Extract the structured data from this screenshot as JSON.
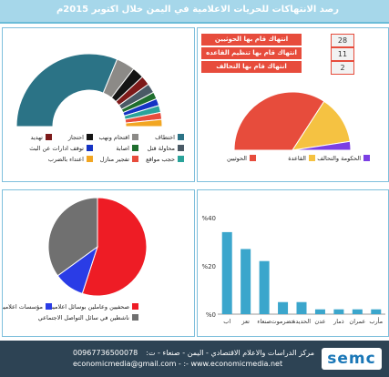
{
  "page_title": "رصد الانتهاكات للحريات الاعلامية في اليمن خلال اكتوبر 2015م",
  "colors": {
    "accent": "#a6d7ea",
    "footer": "#2d4354",
    "red": "#e74c3c"
  },
  "chart_data": [
    {
      "type": "pie",
      "variant": "half-donut",
      "title": "",
      "series": [
        {
          "name": "اختطاف",
          "value": 60,
          "color": "#2b7386"
        },
        {
          "name": "اقتحام ونهب",
          "value": 8,
          "color": "#8c8a87"
        },
        {
          "name": "احتجاز",
          "value": 5,
          "color": "#141414"
        },
        {
          "name": "تهديد",
          "value": 4,
          "color": "#7d1a1a"
        },
        {
          "name": "محاولة قتل",
          "value": 4,
          "color": "#4a5a66"
        },
        {
          "name": "اصابة",
          "value": 3,
          "color": "#1f6e2e"
        },
        {
          "name": "توقف ادارات عن البث",
          "value": 3,
          "color": "#1533c4"
        },
        {
          "name": "حجب مواقع",
          "value": 3,
          "color": "#2aa39a"
        },
        {
          "name": "تفجير منازل",
          "value": 3,
          "color": "#e74c3c"
        },
        {
          "name": "اعتداء بالضرب",
          "value": 3,
          "color": "#f2a622"
        }
      ],
      "legend_rows": [
        [
          "اختطاف",
          "اقتحام ونهب",
          "احتجاز",
          "تهديد"
        ],
        [
          "محاولة قتل",
          "اصابة",
          "توقف ادارات عن البث",
          ""
        ],
        [
          "حجب مواقع",
          "تفجير منازل",
          "اعتداء بالضرب",
          ""
        ]
      ]
    },
    {
      "type": "pie",
      "variant": "half-pie",
      "title": "",
      "series": [
        {
          "name": "الحوثيين",
          "label": "انتهاك قام بها الحوثيين",
          "value": 28,
          "color": "#e74c3c"
        },
        {
          "name": "القاعدة",
          "label": "انتهاك قام بها تنظيم القاعده",
          "value": 11,
          "color": "#f5c242"
        },
        {
          "name": "الحكومة والتحالف",
          "label": "انتهاك قام بها التحالف",
          "value": 2,
          "color": "#7b3fe4"
        }
      ]
    },
    {
      "type": "pie",
      "title": "",
      "series": [
        {
          "name": "صحفيين وعاملين بوسائل اعلامية",
          "value": 55,
          "color": "#ee1c25"
        },
        {
          "name": "مؤسسات اعلامية",
          "value": 10,
          "color": "#2a3ce6"
        },
        {
          "name": "ناشطين في سائل التواصل الاجتماعي",
          "value": 35,
          "color": "#707070"
        }
      ]
    },
    {
      "type": "bar",
      "title": "",
      "y_unit": "%",
      "ylim": [
        0,
        40
      ],
      "yticks": [
        "%0",
        "%20",
        "%40"
      ],
      "categories": [
        "اب",
        "تعز",
        "صنعاء",
        "حضرموت",
        "الحديدة",
        "عدن",
        "ذمار",
        "عمران",
        "مأرب"
      ],
      "values": [
        34,
        27,
        22,
        5,
        5,
        2,
        2,
        2,
        2
      ],
      "color": "#3ba6cc",
      "ylabel": "",
      "xlabel": ""
    }
  ],
  "footer": {
    "line1": "مركز الدراسات والاعلام الاقتصادي - اليمن - صنعاء - ت:",
    "phone": "00967736500078",
    "line2": "economicmedia@gmail.com - :- www.economicmedia.net",
    "logo": "semc"
  }
}
